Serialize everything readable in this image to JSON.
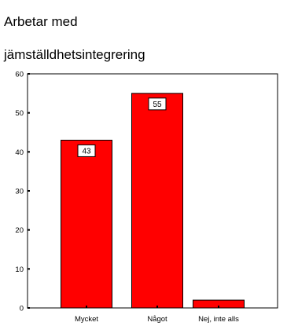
{
  "chart_data": {
    "type": "bar",
    "title_lines": [
      "Arbetar med",
      "jämställdhetsintegrering"
    ],
    "categories": [
      "Mycket",
      "Något",
      "Nej, inte alls"
    ],
    "values": [
      43,
      55,
      2
    ],
    "data_labels": [
      "43",
      "55",
      ""
    ],
    "ylim": [
      0,
      60
    ],
    "yticks": [
      0,
      10,
      20,
      30,
      40,
      50,
      60
    ],
    "xlabel": "",
    "ylabel": "",
    "grid": false,
    "bar_color": "#ff0000"
  }
}
